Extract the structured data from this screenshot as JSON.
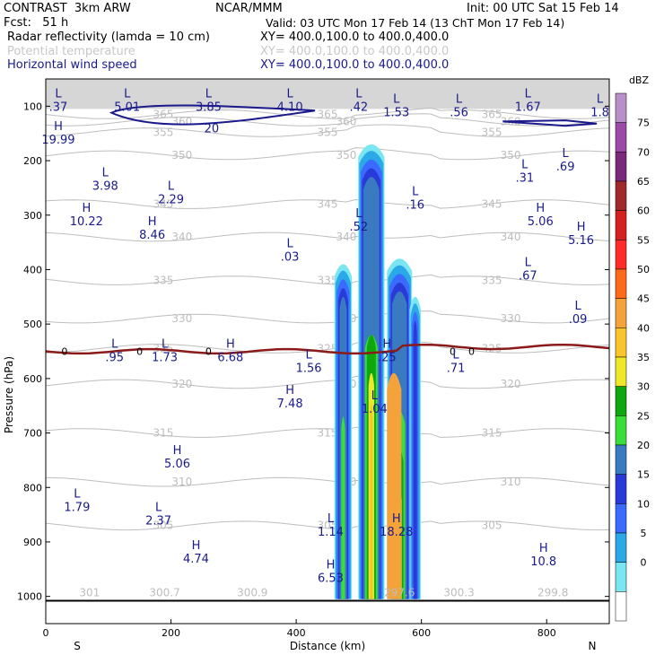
{
  "header": {
    "line1_left": "CONTRAST  3km ARW",
    "line1_mid": "NCAR/MMM",
    "line1_right": "Init: 00 UTC Sat 15 Feb 14",
    "line2_left": "Fcst:   51 h",
    "line2_right": "Valid: 03 UTC Mon 17 Feb 14 (13 ChT Mon 17 Feb 14)",
    "line3_left": "Radar reflectivity (lamda = 10 cm)",
    "line3_right": "XY= 400.0,100.0 to 400.0,400.0",
    "line4_left": "Potential temperature",
    "line4_right": "XY= 400.0,100.0 to 400.0,400.0",
    "line5_left": "Horizontal wind speed",
    "line5_right": "XY= 400.0,100.0 to 400.0,400.0"
  },
  "colors": {
    "isentrope": "#bdbdbd",
    "wind": "#1a1a8c",
    "freezing": "#8b1a1a"
  },
  "chart_data": {
    "type": "cross-section",
    "title": "Radar reflectivity, potential temperature and horizontal wind speed cross section",
    "xlabel": "Distance (km)",
    "ylabel": "Pressure (hPa)",
    "xlim": [
      0,
      900
    ],
    "ylim": [
      1050,
      50
    ],
    "x_ticks": [
      0,
      200,
      400,
      600,
      800
    ],
    "x_tick_labels": [
      "0",
      "200",
      "400",
      "600",
      "800"
    ],
    "y_ticks": [
      100,
      200,
      300,
      400,
      500,
      600,
      700,
      800,
      900,
      1000
    ],
    "y_tick_labels": [
      "100",
      "200",
      "300",
      "400",
      "500",
      "600",
      "700",
      "800",
      "900",
      "1000"
    ],
    "x_end_labels": {
      "left": "S",
      "right": "N"
    },
    "colorbar": {
      "units": "dBZ",
      "levels": [
        "75",
        "70",
        "65",
        "60",
        "55",
        "50",
        "45",
        "40",
        "35",
        "30",
        "25",
        "20",
        "15",
        "10",
        "5",
        "0"
      ],
      "colors": [
        "#b88fc9",
        "#9c4aa8",
        "#7a2a7a",
        "#a02a2a",
        "#d42020",
        "#ff2a2a",
        "#ff6a1a",
        "#f4a23a",
        "#f8c62a",
        "#f0e62a",
        "#0ea80e",
        "#3ade3a",
        "#3a7ac0",
        "#2a3ad8",
        "#3a6aff",
        "#2aa8e8",
        "#7ae6f2",
        "#ffffff"
      ]
    },
    "isentropes": [
      {
        "label": "365",
        "p": 115
      },
      {
        "label": "360",
        "p": 128
      },
      {
        "label": "355",
        "p": 148
      },
      {
        "label": "350",
        "p": 190
      },
      {
        "label": "345",
        "p": 280
      },
      {
        "label": "340",
        "p": 340
      },
      {
        "label": "335",
        "p": 420
      },
      {
        "label": "330",
        "p": 490
      },
      {
        "label": "325",
        "p": 545
      },
      {
        "label": "320",
        "p": 610
      },
      {
        "label": "315",
        "p": 700
      },
      {
        "label": "310",
        "p": 790
      },
      {
        "label": "305",
        "p": 870
      }
    ],
    "surface_isentrope_labels": [
      {
        "label": "301",
        "x": 70
      },
      {
        "label": "300.7",
        "x": 190
      },
      {
        "label": "300.9",
        "x": 330
      },
      {
        "label": "300.3",
        "x": 660
      },
      {
        "label": "299.8",
        "x": 810
      },
      {
        "label": "297.6",
        "x": 565
      }
    ],
    "wind_contour": {
      "label": "20",
      "p_center": 115
    },
    "freezing_level": {
      "label": "0",
      "p": 550
    },
    "extrema": [
      {
        "t": "L",
        "v": ".37",
        "x": 20,
        "p": 100
      },
      {
        "t": "L",
        "v": "5.01",
        "x": 130,
        "p": 100
      },
      {
        "t": "L",
        "v": "3.85",
        "x": 260,
        "p": 100
      },
      {
        "t": "L",
        "v": "4.10",
        "x": 390,
        "p": 100
      },
      {
        "t": "L",
        "v": ".42",
        "x": 500,
        "p": 100
      },
      {
        "t": "L",
        "v": "1.53",
        "x": 560,
        "p": 110
      },
      {
        "t": "L",
        "v": ".56",
        "x": 660,
        "p": 110
      },
      {
        "t": "L",
        "v": "1.67",
        "x": 770,
        "p": 100
      },
      {
        "t": "L",
        "v": "1.8",
        "x": 885,
        "p": 110
      },
      {
        "t": "H",
        "v": "19.99",
        "x": 20,
        "p": 160
      },
      {
        "t": "L",
        "v": "3.98",
        "x": 95,
        "p": 245
      },
      {
        "t": "L",
        "v": "2.29",
        "x": 200,
        "p": 270
      },
      {
        "t": "H",
        "v": "10.22",
        "x": 65,
        "p": 310
      },
      {
        "t": "H",
        "v": "8.46",
        "x": 170,
        "p": 335
      },
      {
        "t": "L",
        "v": ".03",
        "x": 390,
        "p": 375
      },
      {
        "t": "L",
        "v": ".52",
        "x": 500,
        "p": 320
      },
      {
        "t": "L",
        "v": ".16",
        "x": 590,
        "p": 280
      },
      {
        "t": "L",
        "v": ".31",
        "x": 765,
        "p": 230
      },
      {
        "t": "L",
        "v": ".69",
        "x": 830,
        "p": 210
      },
      {
        "t": "H",
        "v": "5.06",
        "x": 790,
        "p": 310
      },
      {
        "t": "H",
        "v": "5.16",
        "x": 855,
        "p": 345
      },
      {
        "t": "L",
        "v": ".67",
        "x": 770,
        "p": 410
      },
      {
        "t": "L",
        "v": ".09",
        "x": 850,
        "p": 490
      },
      {
        "t": "L",
        "v": "1.56",
        "x": 420,
        "p": 580
      },
      {
        "t": "L",
        "v": ".71",
        "x": 655,
        "p": 580
      },
      {
        "t": "L",
        "v": ".95",
        "x": 110,
        "p": 560
      },
      {
        "t": "L",
        "v": "1.73",
        "x": 190,
        "p": 560
      },
      {
        "t": "H",
        "v": "6.68",
        "x": 295,
        "p": 560
      },
      {
        "t": "H",
        "v": "7.48",
        "x": 390,
        "p": 645
      },
      {
        "t": "H",
        "v": ".25",
        "x": 545,
        "p": 560
      },
      {
        "t": "L",
        "v": "1.04",
        "x": 525,
        "p": 655
      },
      {
        "t": "H",
        "v": "5.06",
        "x": 210,
        "p": 755
      },
      {
        "t": "L",
        "v": "1.79",
        "x": 50,
        "p": 835
      },
      {
        "t": "L",
        "v": "2.37",
        "x": 180,
        "p": 860
      },
      {
        "t": "L",
        "v": "1.14",
        "x": 455,
        "p": 880
      },
      {
        "t": "H",
        "v": "18.28",
        "x": 560,
        "p": 880
      },
      {
        "t": "H",
        "v": "4.74",
        "x": 240,
        "p": 930
      },
      {
        "t": "H",
        "v": "6.53",
        "x": 455,
        "p": 965
      },
      {
        "t": "H",
        "v": "10.8",
        "x": 795,
        "p": 935
      }
    ]
  }
}
